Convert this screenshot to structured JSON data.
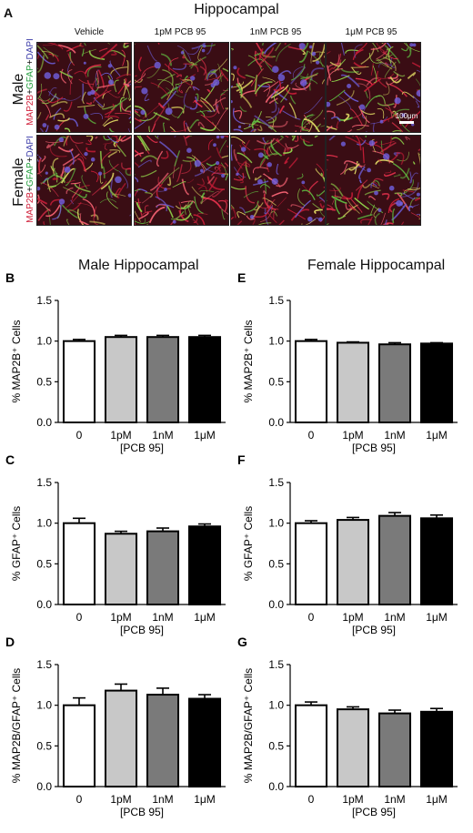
{
  "figure": {
    "panel_a_letter": "A",
    "panel_a_title": "Hippocampal",
    "conditions": [
      "Vehicle",
      "1pM PCB 95",
      "1nM PCB 95",
      "1μM PCB 95"
    ],
    "rows": [
      "Male",
      "Female"
    ],
    "stain_parts": [
      "MAP2B",
      "+",
      "GFAP",
      "+",
      "DAPI"
    ],
    "scale_bar": "100μm",
    "male_title": "Male Hippocampal",
    "female_title": "Female Hippocampal",
    "colors": {
      "red": "#d0203a",
      "green": "#1f9c3a",
      "blue": "#3a3aa8"
    }
  },
  "chart_data": [
    {
      "panel": "B",
      "type": "bar",
      "categories": [
        "0",
        "1pM",
        "1nM",
        "1μM"
      ],
      "values": [
        1.0,
        1.05,
        1.05,
        1.05
      ],
      "errors": [
        0.02,
        0.02,
        0.02,
        0.02
      ],
      "colors": [
        "#ffffff",
        "#c8c8c8",
        "#7a7a7a",
        "#000000"
      ],
      "ylabel": "% MAP2B⁺ Cells",
      "xlabel": "[PCB 95]",
      "ylim": [
        0,
        1.5
      ],
      "yticks": [
        "0.0",
        "0.5",
        "1.0",
        "1.5"
      ]
    },
    {
      "panel": "E",
      "type": "bar",
      "categories": [
        "0",
        "1pM",
        "1nM",
        "1μM"
      ],
      "values": [
        1.0,
        0.98,
        0.96,
        0.97
      ],
      "errors": [
        0.02,
        0.01,
        0.02,
        0.01
      ],
      "colors": [
        "#ffffff",
        "#c8c8c8",
        "#7a7a7a",
        "#000000"
      ],
      "ylabel": "% MAP2B⁺ Cells",
      "xlabel": "[PCB 95]",
      "ylim": [
        0,
        1.5
      ],
      "yticks": [
        "0.0",
        "0.5",
        "1.0",
        "1.5"
      ]
    },
    {
      "panel": "C",
      "type": "bar",
      "categories": [
        "0",
        "1pM",
        "1nM",
        "1μM"
      ],
      "values": [
        1.0,
        0.87,
        0.9,
        0.96
      ],
      "errors": [
        0.06,
        0.03,
        0.04,
        0.03
      ],
      "colors": [
        "#ffffff",
        "#c8c8c8",
        "#7a7a7a",
        "#000000"
      ],
      "ylabel": "% GFAP⁺ Cells",
      "xlabel": "[PCB 95]",
      "ylim": [
        0,
        1.5
      ],
      "yticks": [
        "0.0",
        "0.5",
        "1.0",
        "1.5"
      ]
    },
    {
      "panel": "F",
      "type": "bar",
      "categories": [
        "0",
        "1pM",
        "1nM",
        "1μM"
      ],
      "values": [
        1.0,
        1.04,
        1.09,
        1.06
      ],
      "errors": [
        0.03,
        0.03,
        0.04,
        0.04
      ],
      "colors": [
        "#ffffff",
        "#c8c8c8",
        "#7a7a7a",
        "#000000"
      ],
      "ylabel": "% GFAP⁺ Cells",
      "xlabel": "[PCB 95]",
      "ylim": [
        0,
        1.5
      ],
      "yticks": [
        "0.0",
        "0.5",
        "1.0",
        "1.5"
      ]
    },
    {
      "panel": "D",
      "type": "bar",
      "categories": [
        "0",
        "1pM",
        "1nM",
        "1μM"
      ],
      "values": [
        1.0,
        1.18,
        1.13,
        1.08
      ],
      "errors": [
        0.09,
        0.08,
        0.08,
        0.05
      ],
      "colors": [
        "#ffffff",
        "#c8c8c8",
        "#7a7a7a",
        "#000000"
      ],
      "ylabel": "% MAP2B/GFAP⁺ Cells",
      "xlabel": "[PCB 95]",
      "ylim": [
        0,
        1.5
      ],
      "yticks": [
        "0.0",
        "0.5",
        "1.0",
        "1.5"
      ]
    },
    {
      "panel": "G",
      "type": "bar",
      "categories": [
        "0",
        "1pM",
        "1nM",
        "1μM"
      ],
      "values": [
        1.0,
        0.95,
        0.9,
        0.92
      ],
      "errors": [
        0.04,
        0.03,
        0.04,
        0.04
      ],
      "colors": [
        "#ffffff",
        "#c8c8c8",
        "#7a7a7a",
        "#000000"
      ],
      "ylabel": "% MAP2B/GFAP⁺ Cells",
      "xlabel": "[PCB 95]",
      "ylim": [
        0,
        1.5
      ],
      "yticks": [
        "0.0",
        "0.5",
        "1.0",
        "1.5"
      ]
    }
  ]
}
